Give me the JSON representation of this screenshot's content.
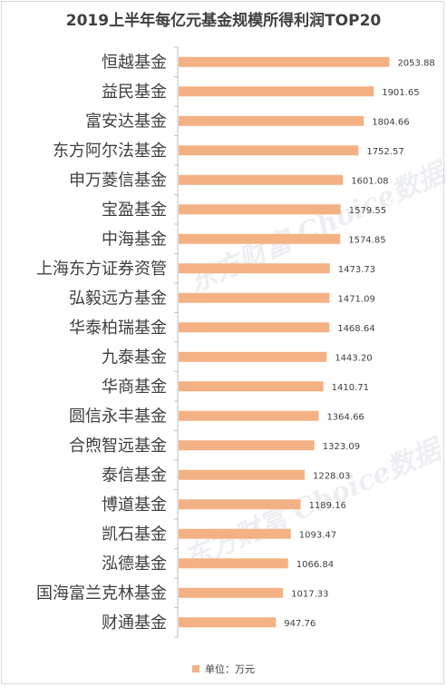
{
  "colors": {
    "bar": "#f4b183",
    "axis": "#bfbfbf",
    "text": "#404040"
  },
  "watermark_text": "东方财富 Choice数据",
  "chart_data": {
    "type": "bar",
    "orientation": "horizontal",
    "title": "2019上半年每亿元基金规模所得利润TOP20",
    "categories": [
      "恒越基金",
      "益民基金",
      "富安达基金",
      "东方阿尔法基金",
      "申万菱信基金",
      "宝盈基金",
      "中海基金",
      "上海东方证券资管",
      "弘毅远方基金",
      "华泰柏瑞基金",
      "九泰基金",
      "华商基金",
      "圆信永丰基金",
      "合煦智远基金",
      "泰信基金",
      "博道基金",
      "凯石基金",
      "泓德基金",
      "国海富兰克林基金",
      "财通基金"
    ],
    "values": [
      2053.88,
      1901.65,
      1804.66,
      1752.57,
      1601.08,
      1579.55,
      1574.85,
      1473.73,
      1471.09,
      1468.64,
      1443.2,
      1410.71,
      1364.66,
      1323.09,
      1228.03,
      1189.16,
      1093.47,
      1066.84,
      1017.33,
      947.76
    ],
    "value_labels": [
      "2053.88",
      "1901.65",
      "1804.66",
      "1752.57",
      "1601.08",
      "1579.55",
      "1574.85",
      "1473.73",
      "1471.09",
      "1468.64",
      "1443.20",
      "1410.71",
      "1364.66",
      "1323.09",
      "1228.03",
      "1189.16",
      "1093.47",
      "1066.84",
      "1017.33",
      "947.76"
    ],
    "xlim": [
      0,
      2050
    ],
    "legend": {
      "label": "单位：万元",
      "position": "bottom"
    },
    "grid": false
  }
}
